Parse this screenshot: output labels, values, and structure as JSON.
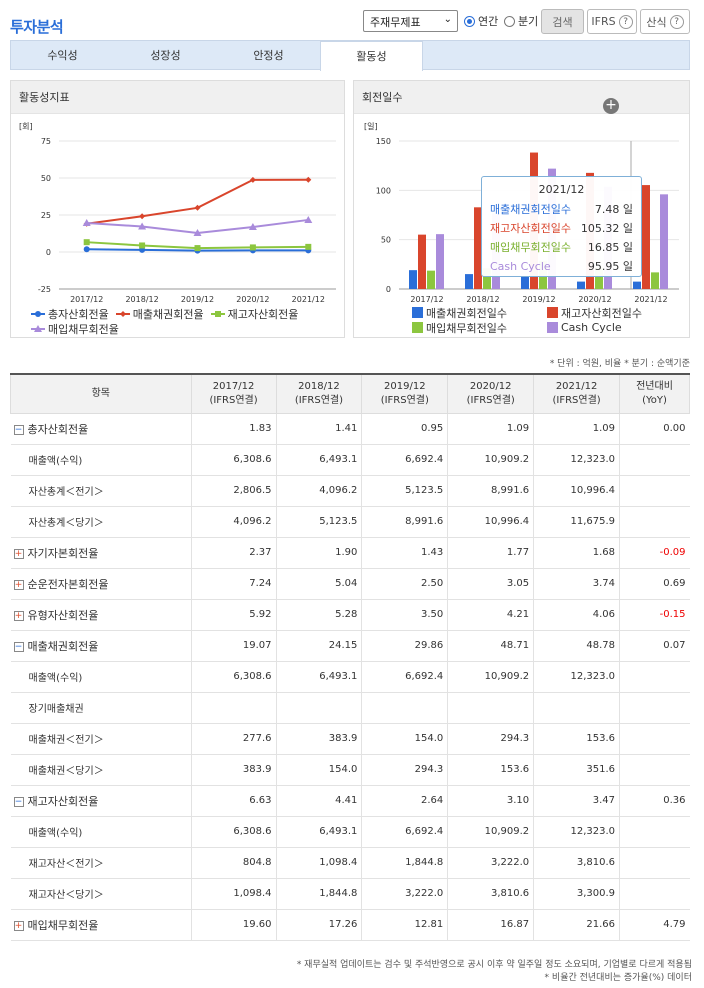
{
  "header": {
    "title": "투자분석",
    "select_value": "주재무제표",
    "radio_annual": "연간",
    "radio_quarter": "분기",
    "search_button": "검색",
    "ifrs_button": "IFRS",
    "formula_button": "산식"
  },
  "tabs": [
    {
      "label": "수익성"
    },
    {
      "label": "성장성"
    },
    {
      "label": "안정성"
    },
    {
      "label": "활동성"
    }
  ],
  "left_panel": {
    "title": "활동성지표",
    "unit_label": "[회]",
    "legend": [
      "총자산회전율",
      "매출채권회전율",
      "재고자산회전율",
      "매입채무회전율"
    ]
  },
  "right_panel": {
    "title": "회전일수",
    "unit_label": "[일]",
    "legend": [
      "매출채권회전일수",
      "재고자산회전일수",
      "매입채무회전일수",
      "Cash Cycle"
    ],
    "tooltip": {
      "title": "2021/12",
      "rows": [
        {
          "label": "매출채권회전일수",
          "value": "7.48 일"
        },
        {
          "label": "재고자산회전일수",
          "value": "105.32 일"
        },
        {
          "label": "매입채무회전일수",
          "value": "16.85 일"
        },
        {
          "label": "Cash Cycle",
          "value": "95.95 일"
        }
      ]
    }
  },
  "colors": {
    "accent": "#2a6ed8",
    "receivable": "#2a6ed8",
    "inventory": "#d9452c",
    "payable": "#8cc63f",
    "cashcycle": "#a98bdb"
  },
  "chart_data": [
    {
      "type": "line",
      "categories": [
        "2017/12",
        "2018/12",
        "2019/12",
        "2020/12",
        "2021/12"
      ],
      "ylim": [
        -25,
        75
      ],
      "yticks": [
        -25,
        0,
        25,
        50,
        75
      ],
      "series": [
        {
          "name": "총자산회전율",
          "values": [
            1.83,
            1.41,
            0.95,
            1.09,
            1.09
          ],
          "color": "#2a6ed8"
        },
        {
          "name": "매출채권회전율",
          "values": [
            19.07,
            24.15,
            29.86,
            48.71,
            48.78
          ],
          "color": "#d9452c"
        },
        {
          "name": "재고자산회전율",
          "values": [
            6.63,
            4.41,
            2.64,
            3.1,
            3.47
          ],
          "color": "#8cc63f"
        },
        {
          "name": "매입채무회전율",
          "values": [
            19.6,
            17.26,
            12.81,
            16.87,
            21.66
          ],
          "color": "#a98bdb"
        }
      ]
    },
    {
      "type": "bar",
      "categories": [
        "2017/12",
        "2018/12",
        "2019/12",
        "2020/12",
        "2021/12"
      ],
      "ylim": [
        0,
        150
      ],
      "yticks": [
        0,
        50,
        100,
        150
      ],
      "series": [
        {
          "name": "매출채권회전일수",
          "values": [
            19.1,
            15.1,
            12.2,
            7.5,
            7.48
          ],
          "color": "#2a6ed8"
        },
        {
          "name": "재고자산회전일수",
          "values": [
            55.1,
            82.8,
            138.3,
            117.7,
            105.32
          ],
          "color": "#d9452c"
        },
        {
          "name": "매입채무회전일수",
          "values": [
            18.6,
            21.1,
            28.5,
            21.6,
            16.85
          ],
          "color": "#8cc63f"
        },
        {
          "name": "Cash Cycle",
          "values": [
            55.6,
            76.8,
            122,
            103.6,
            95.95
          ],
          "color": "#a98bdb"
        }
      ]
    }
  ],
  "table": {
    "unit_note": "* 단위 : 억원, 비율   * 분기 : 순액기준",
    "header": {
      "item": "항목",
      "cols": [
        {
          "y": "2017/12",
          "s": "(IFRS연결)"
        },
        {
          "y": "2018/12",
          "s": "(IFRS연결)"
        },
        {
          "y": "2019/12",
          "s": "(IFRS연결)"
        },
        {
          "y": "2020/12",
          "s": "(IFRS연결)"
        },
        {
          "y": "2021/12",
          "s": "(IFRS연결)"
        }
      ],
      "yoy": "전년대비",
      "yoy2": "(YoY)"
    },
    "rows": [
      {
        "type": "main",
        "toggle": "−",
        "label": "총자산회전율",
        "v": [
          "1.83",
          "1.41",
          "0.95",
          "1.09",
          "1.09"
        ],
        "yoy": "0.00",
        "neg": false
      },
      {
        "type": "sub",
        "label": "매출액(수익)",
        "v": [
          "6,308.6",
          "6,493.1",
          "6,692.4",
          "10,909.2",
          "12,323.0"
        ],
        "yoy": ""
      },
      {
        "type": "sub",
        "label": "자산총계＜전기＞",
        "v": [
          "2,806.5",
          "4,096.2",
          "5,123.5",
          "8,991.6",
          "10,996.4"
        ],
        "yoy": ""
      },
      {
        "type": "sub",
        "label": "자산총계＜당기＞",
        "v": [
          "4,096.2",
          "5,123.5",
          "8,991.6",
          "10,996.4",
          "11,675.9"
        ],
        "yoy": ""
      },
      {
        "type": "main",
        "toggle": "+",
        "label": "자기자본회전율",
        "v": [
          "2.37",
          "1.90",
          "1.43",
          "1.77",
          "1.68"
        ],
        "yoy": "-0.09",
        "neg": true
      },
      {
        "type": "main",
        "toggle": "+",
        "label": "순운전자본회전율",
        "v": [
          "7.24",
          "5.04",
          "2.50",
          "3.05",
          "3.74"
        ],
        "yoy": "0.69",
        "neg": false
      },
      {
        "type": "main",
        "toggle": "+",
        "label": "유형자산회전율",
        "v": [
          "5.92",
          "5.28",
          "3.50",
          "4.21",
          "4.06"
        ],
        "yoy": "-0.15",
        "neg": true
      },
      {
        "type": "main",
        "toggle": "−",
        "label": "매출채권회전율",
        "v": [
          "19.07",
          "24.15",
          "29.86",
          "48.71",
          "48.78"
        ],
        "yoy": "0.07",
        "neg": false
      },
      {
        "type": "sub",
        "label": "매출액(수익)",
        "v": [
          "6,308.6",
          "6,493.1",
          "6,692.4",
          "10,909.2",
          "12,323.0"
        ],
        "yoy": ""
      },
      {
        "type": "sub",
        "label": "장기매출채권",
        "v": [
          "",
          "",
          "",
          "",
          ""
        ],
        "yoy": ""
      },
      {
        "type": "sub",
        "label": "매출채권＜전기＞",
        "v": [
          "277.6",
          "383.9",
          "154.0",
          "294.3",
          "153.6"
        ],
        "yoy": ""
      },
      {
        "type": "sub",
        "label": "매출채권＜당기＞",
        "v": [
          "383.9",
          "154.0",
          "294.3",
          "153.6",
          "351.6"
        ],
        "yoy": ""
      },
      {
        "type": "main",
        "toggle": "−",
        "label": "재고자산회전율",
        "v": [
          "6.63",
          "4.41",
          "2.64",
          "3.10",
          "3.47"
        ],
        "yoy": "0.36",
        "neg": false
      },
      {
        "type": "sub",
        "label": "매출액(수익)",
        "v": [
          "6,308.6",
          "6,493.1",
          "6,692.4",
          "10,909.2",
          "12,323.0"
        ],
        "yoy": ""
      },
      {
        "type": "sub",
        "label": "재고자산＜전기＞",
        "v": [
          "804.8",
          "1,098.4",
          "1,844.8",
          "3,222.0",
          "3,810.6"
        ],
        "yoy": ""
      },
      {
        "type": "sub",
        "label": "재고자산＜당기＞",
        "v": [
          "1,098.4",
          "1,844.8",
          "3,222.0",
          "3,810.6",
          "3,300.9"
        ],
        "yoy": ""
      },
      {
        "type": "main",
        "toggle": "+",
        "label": "매입채무회전율",
        "v": [
          "19.60",
          "17.26",
          "12.81",
          "16.87",
          "21.66"
        ],
        "yoy": "4.79",
        "neg": false
      }
    ]
  },
  "footer": {
    "note1": "* 재무실적 업데이트는 검수 및 주석반영으로 공시 이후 약 일주일 정도 소요되며, 기업별로 다르게 적용됨",
    "note2": "* 비율간 전년대비는 증가율(%) 데이터"
  }
}
